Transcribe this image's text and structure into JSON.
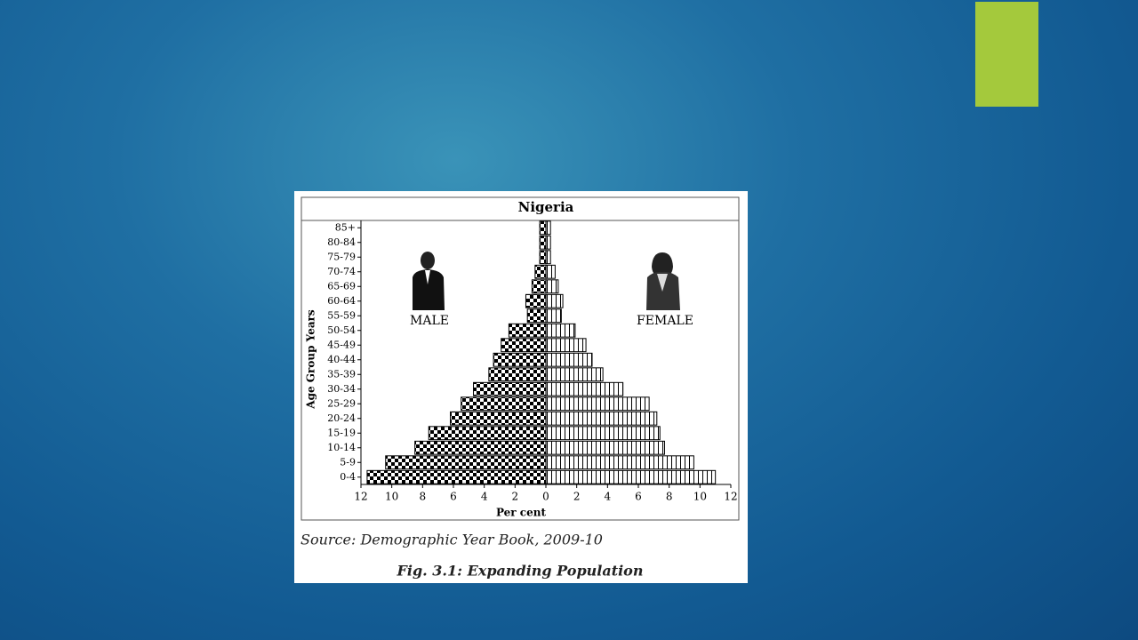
{
  "chart_data": {
    "type": "population-pyramid",
    "title": "Nigeria",
    "y_label": "Age Group Years",
    "x_label": "Per cent",
    "source": "Source: Demographic Year Book, 2009-10",
    "caption": "Fig. 3.1: Expanding Population",
    "categories": [
      "0-4",
      "5-9",
      "10-14",
      "15-19",
      "20-24",
      "25-29",
      "30-34",
      "35-39",
      "40-44",
      "45-49",
      "50-54",
      "55-59",
      "60-64",
      "65-69",
      "70-74",
      "75-79",
      "80-84",
      "85+"
    ],
    "series": [
      {
        "name": "MALE",
        "color": "#000000",
        "values": [
          11.6,
          10.4,
          8.5,
          7.6,
          6.2,
          5.5,
          4.7,
          3.7,
          3.4,
          2.9,
          2.4,
          1.2,
          1.3,
          0.9,
          0.7,
          0.4,
          0.4,
          0.4
        ]
      },
      {
        "name": "FEMALE",
        "color": "#000000",
        "values": [
          11.0,
          9.6,
          7.7,
          7.4,
          7.2,
          6.7,
          5.0,
          3.7,
          3.0,
          2.6,
          1.9,
          1.0,
          1.1,
          0.8,
          0.6,
          0.3,
          0.3,
          0.3
        ]
      }
    ],
    "xlim": [
      0,
      12
    ],
    "xticks": [
      0,
      2,
      4,
      6,
      8,
      10,
      12
    ]
  }
}
